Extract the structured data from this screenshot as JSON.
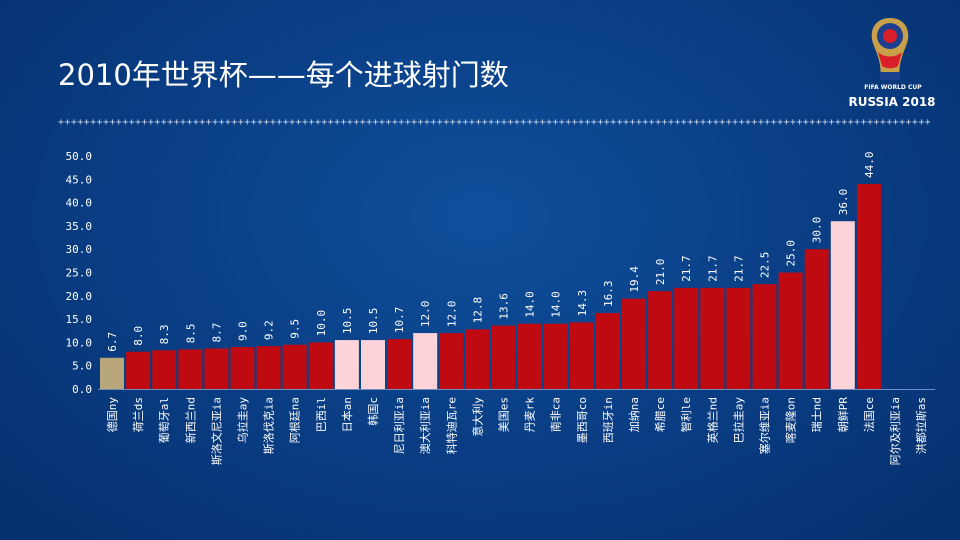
{
  "slide": {
    "title": "2010年世界杯——每个进球射门数",
    "divider_glyph": "+",
    "logo": {
      "line1": "FIFA WORLD CUP",
      "line2": "RUSSIA 2018",
      "icon": "world-cup-trophy-icon"
    }
  },
  "chart_data": {
    "type": "bar",
    "title": "2010年世界杯——每个进球射门数",
    "xlabel": "",
    "ylabel": "",
    "ylim": [
      0,
      50
    ],
    "yticks": [
      "0.0",
      "5.0",
      "10.0",
      "15.0",
      "20.0",
      "25.0",
      "30.0",
      "35.0",
      "40.0",
      "45.0",
      "50.0"
    ],
    "grid": false,
    "legend": "none",
    "categories": [
      "德国ny",
      "荷兰ds",
      "葡萄牙al",
      "新西兰nd",
      "斯洛文尼亚ia",
      "乌拉圭ay",
      "斯洛伐克ia",
      "阿根廷na",
      "巴西il",
      "日本an",
      "韩国c",
      "尼日利亚ia",
      "澳大利亚ia",
      "科特迪瓦re",
      "意大利y",
      "美国es",
      "丹麦rk",
      "南非ca",
      "墨西哥co",
      "西班牙in",
      "加纳na",
      "希腊ce",
      "智利le",
      "英格兰nd",
      "巴拉圭ay",
      "塞尔维亚ia",
      "喀麦隆on",
      "瑞士nd",
      "朝鲜PR",
      "法国ce",
      "阿尔及利亚ia",
      "洪都拉斯as"
    ],
    "values": [
      6.7,
      8.0,
      8.3,
      8.5,
      8.7,
      9.0,
      9.2,
      9.5,
      10.0,
      10.5,
      10.5,
      10.7,
      12.0,
      12.0,
      12.8,
      13.6,
      14.0,
      14.0,
      14.3,
      16.3,
      19.4,
      21.0,
      21.7,
      21.7,
      21.7,
      22.5,
      25.0,
      30.0,
      36.0,
      44.0,
      null,
      null
    ],
    "value_labels": [
      "6.7",
      "8.0",
      "8.3",
      "8.5",
      "8.7",
      "9.0",
      "9.2",
      "9.5",
      "10.0",
      "10.5",
      "10.5",
      "10.7",
      "12.0",
      "12.0",
      "12.8",
      "13.6",
      "14.0",
      "14.0",
      "14.3",
      "16.3",
      "19.4",
      "21.0",
      "21.7",
      "21.7",
      "21.7",
      "22.5",
      "25.0",
      "30.0",
      "36.0",
      "44.0",
      "",
      ""
    ],
    "bar_colors": [
      "#b8a77a",
      "#c00a12",
      "#c00a12",
      "#c00a12",
      "#c00a12",
      "#c00a12",
      "#c00a12",
      "#c00a12",
      "#c00a12",
      "#fbd3d9",
      "#fbd3d9",
      "#c00a12",
      "#fbd3d9",
      "#c00a12",
      "#c00a12",
      "#c00a12",
      "#c00a12",
      "#c00a12",
      "#c00a12",
      "#c00a12",
      "#c00a12",
      "#c00a12",
      "#c00a12",
      "#c00a12",
      "#c00a12",
      "#c00a12",
      "#c00a12",
      "#c00a12",
      "#fbd3d9",
      "#c00a12",
      "#c00a12",
      "#c00a12"
    ]
  },
  "colors": {
    "background": "#0a3f86",
    "text": "#ffffff",
    "bar_default": "#c00a12",
    "bar_highlight": "#fbd3d9",
    "bar_first": "#b8a77a"
  }
}
